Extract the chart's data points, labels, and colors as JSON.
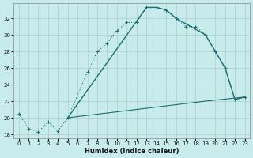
{
  "xlabel": "Humidex (Indice chaleur)",
  "background_color": "#c8ecec",
  "grid_color": "#b0cccc",
  "line_color": "#1a7070",
  "xlim": [
    -0.5,
    23.5
  ],
  "ylim": [
    17.5,
    33.8
  ],
  "xticks": [
    0,
    1,
    2,
    3,
    4,
    5,
    6,
    7,
    8,
    9,
    10,
    11,
    12,
    13,
    14,
    15,
    16,
    17,
    18,
    19,
    20,
    21,
    22,
    23
  ],
  "yticks": [
    18,
    20,
    22,
    24,
    26,
    28,
    30,
    32
  ],
  "series0_x": [
    0,
    1,
    2,
    3,
    4,
    5,
    7,
    8,
    9,
    10,
    11,
    12,
    13,
    14,
    15,
    16,
    17,
    18,
    19,
    20,
    21,
    22,
    23
  ],
  "series0_y": [
    20.5,
    18.7,
    18.3,
    19.5,
    18.4,
    20.0,
    25.5,
    28.0,
    29.0,
    30.5,
    31.5,
    31.5,
    33.3,
    33.3,
    33.0,
    32.0,
    31.0,
    31.0,
    30.0,
    28.0,
    26.0,
    22.2,
    22.5
  ],
  "series1_x": [
    5,
    13,
    14,
    15,
    16,
    19,
    20,
    21,
    22,
    23
  ],
  "series1_y": [
    20.0,
    33.3,
    33.3,
    33.0,
    32.0,
    30.0,
    28.0,
    26.0,
    22.2,
    22.5
  ],
  "series2_x": [
    5,
    19,
    23
  ],
  "series2_y": [
    20.0,
    22.0,
    22.5
  ]
}
